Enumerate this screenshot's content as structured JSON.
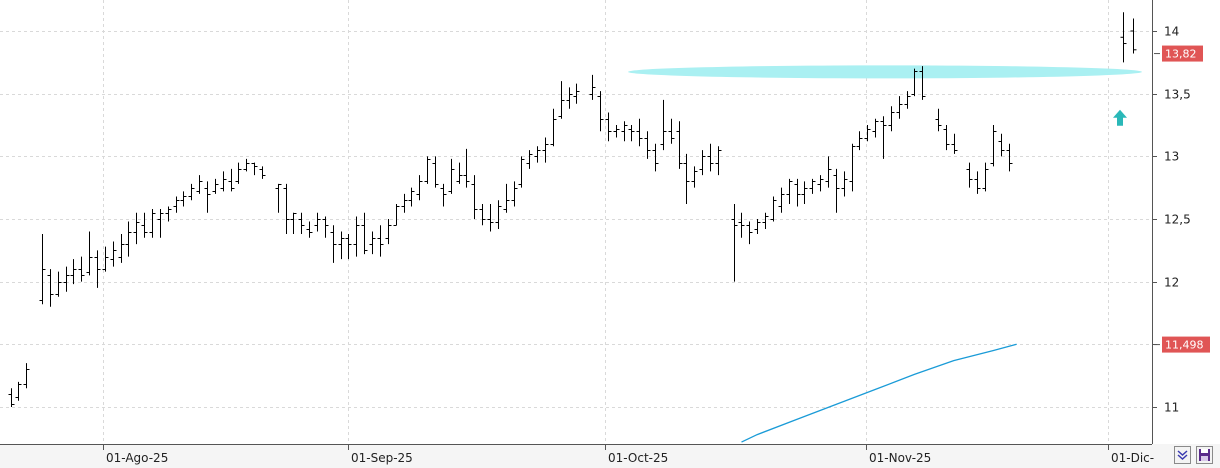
{
  "chart_data": {
    "type": "ohlc",
    "y_range": [
      10.7,
      14.2
    ],
    "y_ticks": [
      {
        "value": 11,
        "label": "11"
      },
      {
        "value": 11.5,
        "label": ""
      },
      {
        "value": 12,
        "label": "12"
      },
      {
        "value": 12.5,
        "label": "12,5"
      },
      {
        "value": 13,
        "label": "13"
      },
      {
        "value": 13.5,
        "label": "13,5"
      },
      {
        "value": 14,
        "label": "14"
      }
    ],
    "date_labels": [
      "01-Ago-25",
      "01-Sep-25",
      "01-Oct-25",
      "01-Nov-25",
      "01-Dic-"
    ],
    "grid": true,
    "bar_color": "#000000",
    "moving_average": {
      "color": "#1a9bd7",
      "points": [
        [
          93,
          10.72
        ],
        [
          95,
          10.78
        ],
        [
          100,
          10.9
        ],
        [
          105,
          11.02
        ],
        [
          110,
          11.14
        ],
        [
          115,
          11.26
        ],
        [
          120,
          11.37
        ],
        [
          125,
          11.45
        ],
        [
          128,
          11.5
        ]
      ]
    },
    "last_price": {
      "value": 13.82,
      "label": "13,82",
      "color": "#e05555"
    },
    "ma_price": {
      "value": 11.498,
      "label": "11,498",
      "color": "#e05555"
    },
    "resistance_band": {
      "value": 13.67,
      "from": 75,
      "to": 135,
      "color": "#aaf0f2"
    },
    "signal_arrow": {
      "index": 131,
      "value": 13.3,
      "color": "#2ab8b8"
    },
    "bars": [
      {
        "h": 11.15,
        "l": 11.0,
        "o": 11.1,
        "c": 11.02
      },
      {
        "h": 11.2,
        "l": 11.05,
        "o": 11.08,
        "c": 11.18
      },
      {
        "h": 11.35,
        "l": 11.15,
        "o": 11.18,
        "c": 11.3
      },
      {
        "h": null,
        "l": null,
        "o": null,
        "c": null
      },
      {
        "h": 12.38,
        "l": 11.82,
        "o": 11.85,
        "c": 12.1
      },
      {
        "h": 12.1,
        "l": 11.8,
        "o": 12.05,
        "c": 11.9
      },
      {
        "h": 12.08,
        "l": 11.88,
        "o": 11.9,
        "c": 12.0
      },
      {
        "h": 12.12,
        "l": 11.92,
        "o": 12.0,
        "c": 12.05
      },
      {
        "h": 12.18,
        "l": 11.98,
        "o": 12.05,
        "c": 12.1
      },
      {
        "h": 12.2,
        "l": 12.0,
        "o": 12.1,
        "c": 12.05
      },
      {
        "h": 12.4,
        "l": 12.05,
        "o": 12.08,
        "c": 12.2
      },
      {
        "h": 12.25,
        "l": 11.95,
        "o": 12.2,
        "c": 12.1
      },
      {
        "h": 12.28,
        "l": 12.08,
        "o": 12.1,
        "c": 12.2
      },
      {
        "h": 12.32,
        "l": 12.12,
        "o": 12.18,
        "c": 12.25
      },
      {
        "h": 12.38,
        "l": 12.15,
        "o": 12.2,
        "c": 12.3
      },
      {
        "h": 12.48,
        "l": 12.2,
        "o": 12.3,
        "c": 12.4
      },
      {
        "h": 12.55,
        "l": 12.3,
        "o": 12.4,
        "c": 12.48
      },
      {
        "h": 12.55,
        "l": 12.35,
        "o": 12.45,
        "c": 12.4
      },
      {
        "h": 12.58,
        "l": 12.35,
        "o": 12.4,
        "c": 12.55
      },
      {
        "h": 12.58,
        "l": 12.35,
        "o": 12.5,
        "c": 12.55
      },
      {
        "h": 12.6,
        "l": 12.48,
        "o": 12.55,
        "c": 12.58
      },
      {
        "h": 12.68,
        "l": 12.55,
        "o": 12.6,
        "c": 12.65
      },
      {
        "h": 12.72,
        "l": 12.6,
        "o": 12.65,
        "c": 12.68
      },
      {
        "h": 12.78,
        "l": 12.65,
        "o": 12.68,
        "c": 12.75
      },
      {
        "h": 12.85,
        "l": 12.7,
        "o": 12.72,
        "c": 12.8
      },
      {
        "h": 12.8,
        "l": 12.55,
        "o": 12.75,
        "c": 12.7
      },
      {
        "h": 12.82,
        "l": 12.7,
        "o": 12.72,
        "c": 12.78
      },
      {
        "h": 12.88,
        "l": 12.72,
        "o": 12.75,
        "c": 12.82
      },
      {
        "h": 12.9,
        "l": 12.72,
        "o": 12.8,
        "c": 12.75
      },
      {
        "h": 12.95,
        "l": 12.78,
        "o": 12.8,
        "c": 12.9
      },
      {
        "h": 12.98,
        "l": 12.88,
        "o": 12.9,
        "c": 12.95
      },
      {
        "h": 12.95,
        "l": 12.85,
        "o": 12.95,
        "c": 12.92
      },
      {
        "h": 12.92,
        "l": 12.82,
        "o": 12.9,
        "c": 12.85
      },
      {
        "h": null,
        "l": null,
        "o": null,
        "c": null
      },
      {
        "h": 12.78,
        "l": 12.55,
        "o": 12.75,
        "c": 12.78
      },
      {
        "h": 12.78,
        "l": 12.38,
        "o": 12.75,
        "c": 12.5
      },
      {
        "h": 12.55,
        "l": 12.38,
        "o": 12.5,
        "c": 12.55
      },
      {
        "h": 12.55,
        "l": 12.38,
        "o": 12.5,
        "c": 12.45
      },
      {
        "h": 12.48,
        "l": 12.35,
        "o": 12.42,
        "c": 12.4
      },
      {
        "h": 12.55,
        "l": 12.4,
        "o": 12.45,
        "c": 12.5
      },
      {
        "h": 12.52,
        "l": 12.35,
        "o": 12.5,
        "c": 12.45
      },
      {
        "h": 12.45,
        "l": 12.15,
        "o": 12.4,
        "c": 12.3
      },
      {
        "h": 12.4,
        "l": 12.18,
        "o": 12.3,
        "c": 12.35
      },
      {
        "h": 12.38,
        "l": 12.18,
        "o": 12.35,
        "c": 12.3
      },
      {
        "h": 12.52,
        "l": 12.2,
        "o": 12.3,
        "c": 12.45
      },
      {
        "h": 12.55,
        "l": 12.22,
        "o": 12.45,
        "c": 12.25
      },
      {
        "h": 12.4,
        "l": 12.22,
        "o": 12.3,
        "c": 12.35
      },
      {
        "h": 12.45,
        "l": 12.2,
        "o": 12.35,
        "c": 12.3
      },
      {
        "h": 12.5,
        "l": 12.3,
        "o": 12.35,
        "c": 12.45
      },
      {
        "h": 12.62,
        "l": 12.45,
        "o": 12.45,
        "c": 12.6
      },
      {
        "h": 12.7,
        "l": 12.55,
        "o": 12.6,
        "c": 12.65
      },
      {
        "h": 12.75,
        "l": 12.6,
        "o": 12.65,
        "c": 12.72
      },
      {
        "h": 12.85,
        "l": 12.65,
        "o": 12.7,
        "c": 12.8
      },
      {
        "h": 13.0,
        "l": 12.78,
        "o": 12.8,
        "c": 12.98
      },
      {
        "h": 13.0,
        "l": 12.75,
        "o": 12.95,
        "c": 12.78
      },
      {
        "h": 12.78,
        "l": 12.6,
        "o": 12.75,
        "c": 12.7
      },
      {
        "h": 12.98,
        "l": 12.7,
        "o": 12.72,
        "c": 12.9
      },
      {
        "h": 12.95,
        "l": 12.78,
        "o": 12.8,
        "c": 12.85
      },
      {
        "h": 13.06,
        "l": 12.75,
        "o": 12.85,
        "c": 12.8
      },
      {
        "h": 12.85,
        "l": 12.5,
        "o": 12.78,
        "c": 12.58
      },
      {
        "h": 12.62,
        "l": 12.45,
        "o": 12.58,
        "c": 12.5
      },
      {
        "h": 12.62,
        "l": 12.4,
        "o": 12.5,
        "c": 12.48
      },
      {
        "h": 12.65,
        "l": 12.42,
        "o": 12.48,
        "c": 12.6
      },
      {
        "h": 12.78,
        "l": 12.55,
        "o": 12.58,
        "c": 12.65
      },
      {
        "h": 12.8,
        "l": 12.6,
        "o": 12.65,
        "c": 12.75
      },
      {
        "h": 13.0,
        "l": 12.75,
        "o": 12.78,
        "c": 12.98
      },
      {
        "h": 13.05,
        "l": 12.9,
        "o": 12.95,
        "c": 13.02
      },
      {
        "h": 13.08,
        "l": 12.95,
        "o": 13.0,
        "c": 13.05
      },
      {
        "h": 13.15,
        "l": 12.95,
        "o": 13.05,
        "c": 13.1
      },
      {
        "h": 13.38,
        "l": 13.08,
        "o": 13.1,
        "c": 13.3
      },
      {
        "h": 13.6,
        "l": 13.3,
        "o": 13.32,
        "c": 13.45
      },
      {
        "h": 13.55,
        "l": 13.38,
        "o": 13.45,
        "c": 13.5
      },
      {
        "h": 13.58,
        "l": 13.42,
        "o": 13.48,
        "c": 13.52
      },
      {
        "h": null,
        "l": null,
        "o": null,
        "c": null
      },
      {
        "h": 13.65,
        "l": 13.45,
        "o": 13.5,
        "c": 13.55
      },
      {
        "h": 13.52,
        "l": 13.2,
        "o": 13.48,
        "c": 13.3
      },
      {
        "h": 13.35,
        "l": 13.12,
        "o": 13.3,
        "c": 13.2
      },
      {
        "h": 13.25,
        "l": 13.15,
        "o": 13.2,
        "c": 13.22
      },
      {
        "h": 13.28,
        "l": 13.12,
        "o": 13.2,
        "c": 13.25
      },
      {
        "h": 13.25,
        "l": 13.12,
        "o": 13.22,
        "c": 13.2
      },
      {
        "h": 13.3,
        "l": 13.08,
        "o": 13.2,
        "c": 13.15
      },
      {
        "h": 13.2,
        "l": 12.98,
        "o": 13.15,
        "c": 13.05
      },
      {
        "h": 13.1,
        "l": 12.88,
        "o": 13.05,
        "c": 12.95
      },
      {
        "h": 13.45,
        "l": 13.05,
        "o": 13.1,
        "c": 13.2
      },
      {
        "h": 13.3,
        "l": 13.1,
        "o": 13.2,
        "c": 13.15
      },
      {
        "h": 13.28,
        "l": 12.9,
        "o": 13.2,
        "c": 12.95
      },
      {
        "h": 13.02,
        "l": 12.62,
        "o": 12.95,
        "c": 12.8
      },
      {
        "h": 12.92,
        "l": 12.75,
        "o": 12.8,
        "c": 12.88
      },
      {
        "h": 13.05,
        "l": 12.85,
        "o": 12.9,
        "c": 13.0
      },
      {
        "h": 13.1,
        "l": 12.88,
        "o": 13.0,
        "c": 12.95
      },
      {
        "h": 13.08,
        "l": 12.85,
        "o": 12.95,
        "c": 13.05
      },
      {
        "h": null,
        "l": null,
        "o": null,
        "c": null
      },
      {
        "h": 12.62,
        "l": 12.0,
        "o": 12.5,
        "c": 12.45
      },
      {
        "h": 12.55,
        "l": 12.35,
        "o": 12.48,
        "c": 12.45
      },
      {
        "h": 12.48,
        "l": 12.3,
        "o": 12.45,
        "c": 12.4
      },
      {
        "h": 12.5,
        "l": 12.38,
        "o": 12.42,
        "c": 12.48
      },
      {
        "h": 12.55,
        "l": 12.42,
        "o": 12.48,
        "c": 12.52
      },
      {
        "h": 12.68,
        "l": 12.48,
        "o": 12.5,
        "c": 12.65
      },
      {
        "h": 12.75,
        "l": 12.55,
        "o": 12.6,
        "c": 12.7
      },
      {
        "h": 12.82,
        "l": 12.62,
        "o": 12.7,
        "c": 12.8
      },
      {
        "h": 12.82,
        "l": 12.6,
        "o": 12.78,
        "c": 12.7
      },
      {
        "h": 12.8,
        "l": 12.62,
        "o": 12.7,
        "c": 12.75
      },
      {
        "h": 12.82,
        "l": 12.7,
        "o": 12.75,
        "c": 12.8
      },
      {
        "h": 12.85,
        "l": 12.72,
        "o": 12.78,
        "c": 12.82
      },
      {
        "h": 13.0,
        "l": 12.75,
        "o": 12.8,
        "c": 12.9
      },
      {
        "h": 12.9,
        "l": 12.55,
        "o": 12.85,
        "c": 12.75
      },
      {
        "h": 12.88,
        "l": 12.68,
        "o": 12.75,
        "c": 12.82
      },
      {
        "h": 13.1,
        "l": 12.72,
        "o": 12.8,
        "c": 13.08
      },
      {
        "h": 13.2,
        "l": 13.05,
        "o": 13.08,
        "c": 13.15
      },
      {
        "h": 13.25,
        "l": 13.12,
        "o": 13.15,
        "c": 13.22
      },
      {
        "h": 13.3,
        "l": 13.15,
        "o": 13.2,
        "c": 13.28
      },
      {
        "h": 13.32,
        "l": 12.98,
        "o": 13.28,
        "c": 13.25
      },
      {
        "h": 13.4,
        "l": 13.2,
        "o": 13.25,
        "c": 13.35
      },
      {
        "h": 13.48,
        "l": 13.3,
        "o": 13.35,
        "c": 13.42
      },
      {
        "h": 13.52,
        "l": 13.38,
        "o": 13.42,
        "c": 13.48
      },
      {
        "h": 13.7,
        "l": 13.48,
        "o": 13.5,
        "c": 13.68
      },
      {
        "h": 13.72,
        "l": 13.45,
        "o": 13.68,
        "c": 13.48
      },
      {
        "h": null,
        "l": null,
        "o": null,
        "c": null
      },
      {
        "h": 13.38,
        "l": 13.2,
        "o": 13.3,
        "c": 13.25
      },
      {
        "h": 13.25,
        "l": 13.05,
        "o": 13.22,
        "c": 13.1
      },
      {
        "h": 13.18,
        "l": 13.02,
        "o": 13.1,
        "c": 13.05
      },
      {
        "h": null,
        "l": null,
        "o": null,
        "c": null
      },
      {
        "h": 12.95,
        "l": 12.75,
        "o": 12.9,
        "c": 12.82
      },
      {
        "h": 12.88,
        "l": 12.7,
        "o": 12.82,
        "c": 12.75
      },
      {
        "h": 12.95,
        "l": 12.72,
        "o": 12.75,
        "c": 12.9
      },
      {
        "h": 13.25,
        "l": 12.92,
        "o": 12.95,
        "c": 13.2
      },
      {
        "h": 13.18,
        "l": 13.0,
        "o": 13.12,
        "c": 13.05
      },
      {
        "h": 13.1,
        "l": 12.88,
        "o": 13.05,
        "c": 12.95
      }
    ]
  },
  "toolbar": {
    "collapse_icon": "chevrons-down-icon",
    "save_icon": "floppy-disk-icon"
  }
}
